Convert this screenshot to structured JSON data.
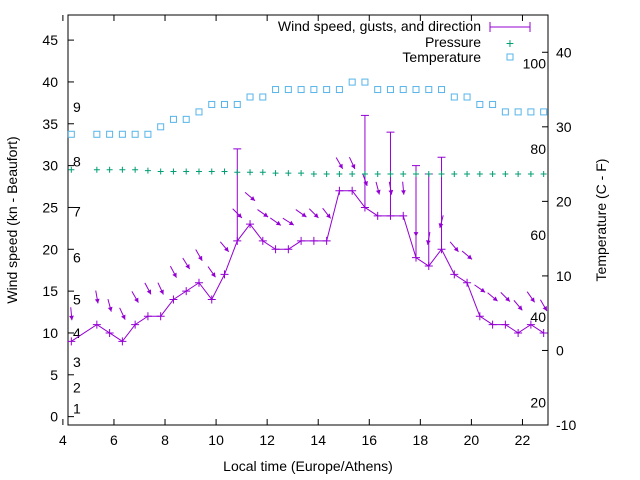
{
  "chart_data": {
    "type": "line",
    "xlabel": "Local time (Europe/Athens)",
    "ylabel": "Wind speed (kn - Beaufort)",
    "y2label": "Temperature (C - F)",
    "xlim": [
      4.2,
      23
    ],
    "ylim": [
      -1,
      48
    ],
    "y2lim": [
      -10,
      45
    ],
    "grid": false,
    "legend_position": "top-right",
    "x_ticks": [
      "4",
      "6",
      "8",
      "10",
      "12",
      "14",
      "16",
      "18",
      "20",
      "22"
    ],
    "y_ticks": [
      "0",
      "5",
      "10",
      "15",
      "20",
      "25",
      "30",
      "35",
      "40",
      "45"
    ],
    "y2_ticks": [
      "-10",
      "0",
      "10",
      "20",
      "30",
      "40"
    ],
    "beaufort_labels": [
      {
        "value": 1,
        "label": "1"
      },
      {
        "value": 3.5,
        "label": "2"
      },
      {
        "value": 6.5,
        "label": "3"
      },
      {
        "value": 10,
        "label": "4"
      },
      {
        "value": 14,
        "label": "5"
      },
      {
        "value": 19,
        "label": "6"
      },
      {
        "value": 24.5,
        "label": "7"
      },
      {
        "value": 30.5,
        "label": "8"
      },
      {
        "value": 37,
        "label": "9"
      }
    ],
    "fahrenheit_labels": [
      {
        "value": -7,
        "label": "20"
      },
      {
        "value": 4.5,
        "label": "40"
      },
      {
        "value": 15.5,
        "label": "60"
      },
      {
        "value": 27,
        "label": "80"
      },
      {
        "value": 38.5,
        "label": "100"
      }
    ],
    "colors": {
      "wind": "#9400d3",
      "pressure": "#009e73",
      "temperature": "#56b4e9",
      "axis": "#000000"
    },
    "series": [
      {
        "name": "Wind speed, gusts, and direction",
        "style": "line-points-errorbars",
        "x": [
          4.33,
          5.33,
          5.83,
          6.33,
          6.83,
          7.33,
          7.83,
          8.33,
          8.83,
          9.33,
          9.83,
          10.33,
          10.83,
          11.33,
          11.83,
          12.33,
          12.83,
          13.33,
          13.83,
          14.33,
          14.83,
          15.33,
          15.83,
          16.33,
          16.83,
          17.33,
          17.83,
          18.33,
          18.83,
          19.33,
          19.83,
          20.33,
          20.83,
          21.33,
          21.83,
          22.33,
          22.83
        ],
        "y": [
          9,
          11,
          10,
          9,
          11,
          12,
          12,
          14,
          15,
          16,
          14,
          17,
          21,
          23,
          21,
          20,
          20,
          21,
          21,
          21,
          27,
          27,
          25,
          24,
          24,
          24,
          19,
          18,
          20,
          17,
          16,
          12,
          11,
          11,
          10,
          11,
          10
        ],
        "gust": [
          9,
          11,
          10,
          9,
          11,
          12,
          12,
          14,
          15,
          16,
          14,
          17,
          32,
          23,
          21,
          20,
          20,
          21,
          21,
          21,
          27,
          27,
          36,
          24,
          34,
          24,
          30,
          29,
          31,
          17,
          16,
          12,
          11,
          11,
          10,
          11,
          10
        ],
        "direction_deg": [
          5,
          10,
          15,
          25,
          30,
          28,
          25,
          28,
          32,
          30,
          35,
          40,
          45,
          50,
          55,
          55,
          58,
          55,
          45,
          38,
          30,
          25,
          20,
          15,
          10,
          5,
          0,
          350,
          345,
          40,
          50,
          55,
          50,
          45,
          40,
          35,
          30
        ]
      },
      {
        "name": "Pressure",
        "style": "points",
        "marker": "+",
        "x": [
          4.33,
          5.33,
          5.83,
          6.33,
          6.83,
          7.33,
          7.83,
          8.33,
          8.83,
          9.33,
          9.83,
          10.33,
          10.83,
          11.33,
          11.83,
          12.33,
          12.83,
          13.33,
          13.83,
          14.33,
          14.83,
          15.33,
          15.83,
          16.33,
          16.83,
          17.33,
          17.83,
          18.33,
          18.83,
          19.33,
          19.83,
          20.33,
          20.83,
          21.33,
          21.83,
          22.33,
          22.83
        ],
        "y": [
          29.5,
          29.5,
          29.5,
          29.5,
          29.5,
          29.4,
          29.3,
          29.3,
          29.3,
          29.3,
          29.3,
          29.3,
          29.2,
          29.2,
          29.2,
          29.1,
          29.1,
          29.1,
          29.0,
          29.0,
          29.0,
          29.0,
          29.0,
          29.0,
          29.0,
          29.0,
          29.0,
          29.0,
          29.0,
          29.0,
          29.0,
          29.0,
          29.0,
          29.0,
          29.0,
          29.0,
          29.0
        ]
      },
      {
        "name": "Temperature",
        "style": "points",
        "marker": "square",
        "axis": "y2",
        "x": [
          4.33,
          5.33,
          5.83,
          6.33,
          6.83,
          7.33,
          7.83,
          8.33,
          8.83,
          9.33,
          9.83,
          10.33,
          10.83,
          11.33,
          11.83,
          12.33,
          12.83,
          13.33,
          13.83,
          14.33,
          14.83,
          15.33,
          15.83,
          16.33,
          16.83,
          17.33,
          17.83,
          18.33,
          18.83,
          19.33,
          19.83,
          20.33,
          20.83,
          21.33,
          21.83,
          22.33,
          22.83
        ],
        "y": [
          29,
          29,
          29,
          29,
          29,
          29,
          30,
          31,
          31,
          32,
          33,
          33,
          33,
          34,
          34,
          35,
          35,
          35,
          35,
          35,
          35,
          36,
          36,
          35,
          35,
          35,
          35,
          35,
          35,
          34,
          34,
          33,
          33,
          32,
          32,
          32,
          32
        ]
      }
    ]
  }
}
